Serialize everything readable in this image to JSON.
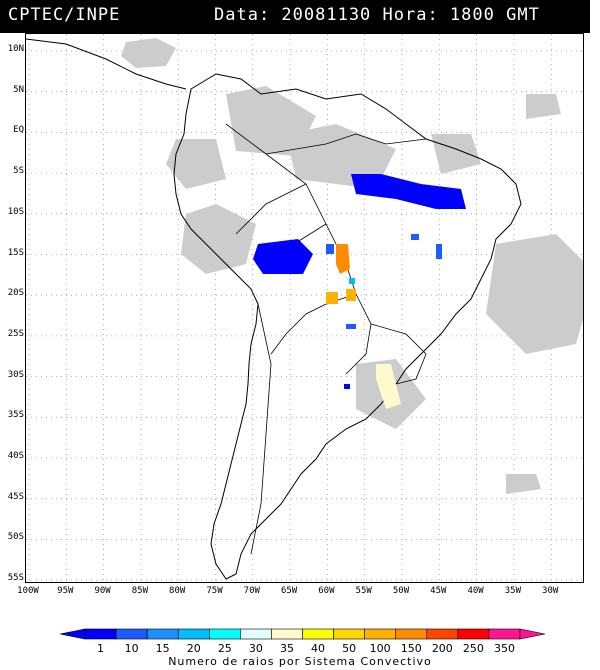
{
  "header": {
    "source": "CPTEC/INPE",
    "datetime": "Data: 20081130 Hora: 1800 GMT"
  },
  "map": {
    "lat_labels": [
      "10N",
      "5N",
      "EQ",
      "5S",
      "10S",
      "15S",
      "20S",
      "25S",
      "30S",
      "35S",
      "40S",
      "45S",
      "50S",
      "55S"
    ],
    "lon_labels": [
      "100W",
      "95W",
      "90W",
      "85W",
      "80W",
      "75W",
      "70W",
      "65W",
      "60W",
      "55W",
      "50W",
      "45W",
      "40W",
      "35W",
      "30W"
    ],
    "grid": "dotted",
    "colors": {
      "land_outline": "#000000",
      "cloud_gray": "#c8c8c8",
      "background": "#ffffff"
    }
  },
  "colorbar": {
    "values": [
      "1",
      "10",
      "15",
      "20",
      "25",
      "30",
      "35",
      "40",
      "50",
      "100",
      "150",
      "200",
      "250",
      "350"
    ],
    "colors": [
      "#0000ff",
      "#1e5bff",
      "#1e90ff",
      "#00bfff",
      "#00ffff",
      "#e0ffff",
      "#fffacd",
      "#ffff00",
      "#ffd700",
      "#ffb000",
      "#ff8c00",
      "#ff4500",
      "#ff0000",
      "#ff1493"
    ],
    "caption": "Numero de raios por Sistema Convectivo"
  }
}
